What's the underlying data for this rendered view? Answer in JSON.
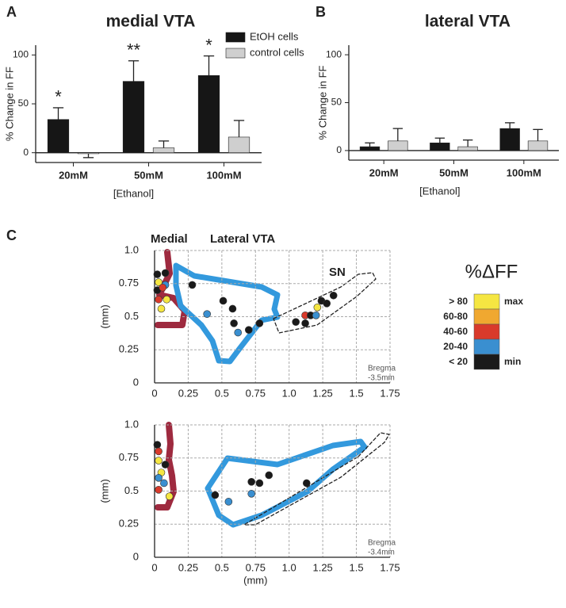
{
  "panels": [
    "A",
    "B",
    "C"
  ],
  "chart_data": [
    {
      "type": "bar",
      "title": "medial VTA",
      "x_label": "[Ethanol]",
      "y_label": "% Change in FF",
      "categories": [
        "20mM",
        "50mM",
        "100mM"
      ],
      "series": [
        {
          "name": "EtOH cells",
          "color": "#161616",
          "values": [
            34,
            73,
            79
          ],
          "errors": [
            12,
            21,
            20
          ]
        },
        {
          "name": "control cells",
          "color": "#cfcfcf",
          "values": [
            -1,
            5,
            16
          ],
          "errors": [
            4,
            7,
            17
          ]
        }
      ],
      "annotations": [
        "*",
        "**",
        "*"
      ],
      "ylim": [
        -10,
        110
      ],
      "yticks": [
        0,
        50,
        100
      ]
    },
    {
      "type": "bar",
      "title": "lateral VTA",
      "x_label": "[Ethanol]",
      "y_label": "% Change in  FF",
      "categories": [
        "20mM",
        "50mM",
        "100mM"
      ],
      "series": [
        {
          "color": "#161616",
          "values": [
            4,
            8,
            23
          ],
          "errors": [
            4,
            5,
            6
          ]
        },
        {
          "color": "#cfcfcf",
          "values": [
            10,
            4,
            10
          ],
          "errors": [
            13,
            7,
            12
          ]
        }
      ],
      "ylim": [
        -10,
        110
      ],
      "yticks": [
        0,
        50,
        100
      ]
    },
    {
      "type": "scatter",
      "y_label": "(mm)",
      "annotations": [
        "Medial",
        "Lateral VTA",
        "SN",
        "Bregma",
        "-3.5mm"
      ],
      "x": [
        0.02,
        0.08,
        0.03,
        0.08,
        0.02,
        0.06,
        0.03,
        0.09,
        0.05,
        0.28,
        0.39,
        0.51,
        0.58,
        0.59,
        0.62,
        0.7,
        0.78,
        1.05,
        1.12,
        1.12,
        1.16,
        1.2,
        1.21,
        1.24,
        1.28,
        1.33
      ],
      "y": [
        0.82,
        0.83,
        0.76,
        0.74,
        0.7,
        0.72,
        0.63,
        0.63,
        0.56,
        0.74,
        0.52,
        0.62,
        0.56,
        0.45,
        0.38,
        0.4,
        0.45,
        0.46,
        0.45,
        0.51,
        0.51,
        0.51,
        0.57,
        0.62,
        0.6,
        0.66
      ],
      "colors": [
        "#1a1a1a",
        "#1a1a1a",
        "#f5e642",
        "#3a8fd0",
        "#1a1a1a",
        "#d93a2b",
        "#d93a2b",
        "#f5e642",
        "#f5e642",
        "#1a1a1a",
        "#3a8fd0",
        "#1a1a1a",
        "#1a1a1a",
        "#1a1a1a",
        "#3a8fd0",
        "#1a1a1a",
        "#1a1a1a",
        "#1a1a1a",
        "#1a1a1a",
        "#d93a2b",
        "#1a1a1a",
        "#3a8fd0",
        "#f5e642",
        "#1a1a1a",
        "#1a1a1a",
        "#1a1a1a"
      ],
      "xlim": [
        0,
        1.75
      ],
      "xticks": [
        0,
        0.25,
        0.5,
        0.75,
        {
          "value": 1,
          "label": "1.0"
        },
        1.25,
        1.5,
        1.75
      ],
      "ylim": [
        0,
        1
      ],
      "yticks": [
        0,
        0.25,
        0.5,
        0.75,
        {
          "value": 1,
          "label": "1.0"
        }
      ],
      "grid": true
    },
    {
      "type": "scatter",
      "x_label": "(mm)",
      "y_label": "(mm)",
      "annotations": [
        "Bregma",
        "-3.4mm"
      ],
      "x": [
        0.02,
        0.03,
        0.03,
        0.08,
        0.05,
        0.03,
        0.07,
        0.03,
        0.11,
        0.45,
        0.55,
        0.72,
        0.72,
        0.78,
        0.85,
        1.13
      ],
      "y": [
        0.85,
        0.8,
        0.73,
        0.7,
        0.64,
        0.6,
        0.56,
        0.51,
        0.46,
        0.47,
        0.42,
        0.48,
        0.57,
        0.56,
        0.62,
        0.56
      ],
      "colors": [
        "#1a1a1a",
        "#d93a2b",
        "#f5e642",
        "#1a1a1a",
        "#f5e642",
        "#3a8fd0",
        "#3a8fd0",
        "#d93a2b",
        "#f5e642",
        "#1a1a1a",
        "#3a8fd0",
        "#3a8fd0",
        "#1a1a1a",
        "#1a1a1a",
        "#1a1a1a",
        "#1a1a1a"
      ],
      "xlim": [
        0,
        1.75
      ],
      "xticks": [
        0,
        0.25,
        0.5,
        0.75,
        {
          "value": 1,
          "label": "1.0"
        },
        1.25,
        1.5,
        1.75
      ],
      "ylim": [
        0,
        1
      ],
      "yticks": [
        0,
        0.25,
        0.5,
        0.75,
        {
          "value": 1,
          "label": "1.0"
        }
      ],
      "grid": true
    }
  ],
  "color_scale": {
    "title": "%ΔFF",
    "max": "max",
    "min": "min",
    "bins": [
      {
        "label": "> 80",
        "color": "#f5e642"
      },
      {
        "label": "60-80",
        "color": "#f0a830"
      },
      {
        "label": "40-60",
        "color": "#d93a2b"
      },
      {
        "label": "20-40",
        "color": "#3a8fd0"
      },
      {
        "label": "< 20",
        "color": "#1a1a1a"
      }
    ]
  }
}
